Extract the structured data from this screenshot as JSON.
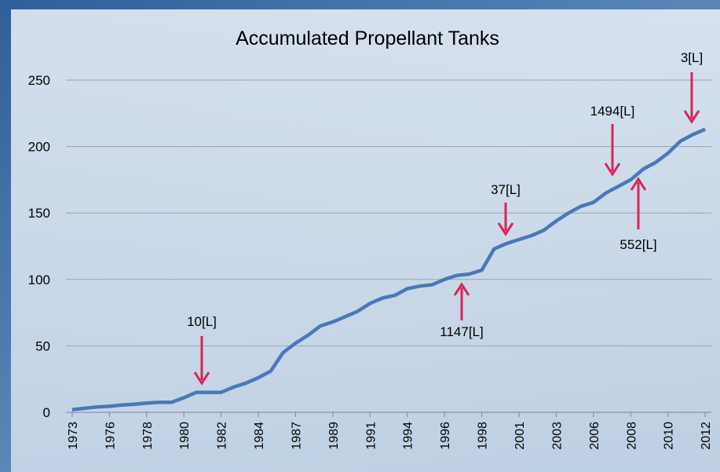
{
  "chart_data": {
    "type": "line",
    "title": "Accumulated Propellant Tanks",
    "categories": [
      "1973",
      null,
      null,
      "1976",
      null,
      null,
      "1978",
      null,
      null,
      "1980",
      null,
      null,
      "1982",
      null,
      null,
      "1984",
      null,
      null,
      "1987",
      null,
      null,
      "1989",
      null,
      null,
      "1991",
      null,
      null,
      "1994",
      null,
      null,
      "1996",
      null,
      null,
      "1998",
      null,
      null,
      "2001",
      null,
      null,
      "2003",
      null,
      null,
      "2006",
      null,
      null,
      "2008",
      null,
      null,
      "2010",
      null,
      null,
      "2012"
    ],
    "series": [
      {
        "name": "Accumulated Propellant Tanks",
        "color": "#4a78b8",
        "values": [
          2,
          3,
          4,
          4.5,
          5.5,
          6,
          7,
          7.5,
          7.5,
          11,
          15,
          15,
          15,
          19,
          22,
          26,
          31,
          45,
          52,
          58,
          65,
          68,
          72,
          76,
          82,
          86,
          88,
          93,
          95,
          96,
          100,
          103,
          104,
          107,
          123,
          127,
          130,
          133,
          137,
          144,
          150,
          155,
          158,
          165,
          170,
          175,
          183,
          188,
          195,
          204,
          209,
          213
        ]
      }
    ],
    "ylim": [
      0,
      250
    ],
    "yticks": [
      0,
      50,
      100,
      150,
      200,
      250
    ],
    "grid": true,
    "annotations": [
      "10[L]",
      "1147[L]",
      "37[L]",
      "1494[L]",
      "552[L]",
      "3[L]"
    ]
  }
}
